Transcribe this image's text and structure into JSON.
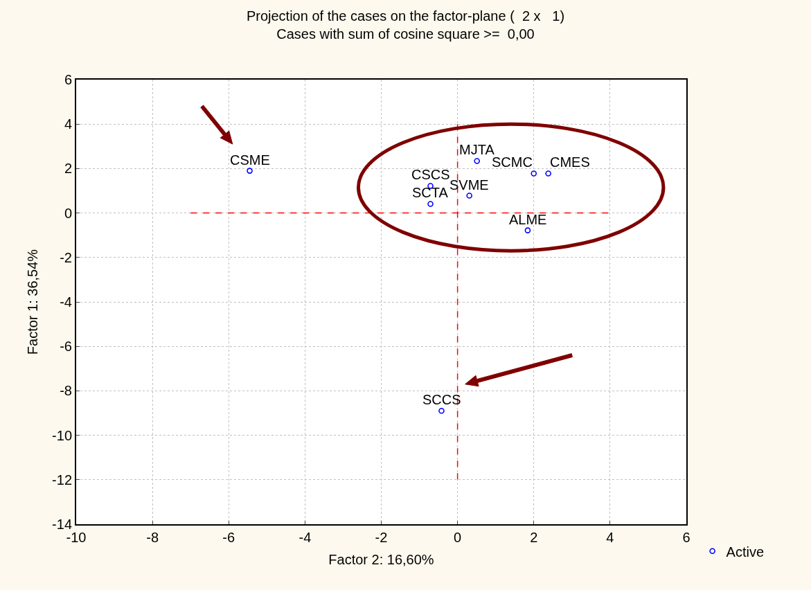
{
  "chart_data": {
    "type": "scatter",
    "title": "Projection of the cases on the factor-plane (  2 x   1)",
    "subtitle": "Cases with sum of cosine square >=  0,00",
    "xlabel": "Factor 2: 16,60%",
    "ylabel": "Factor 1: 36,54%",
    "series": [
      {
        "name": "Active",
        "color": "#0000ff",
        "x": [
          -5.45,
          0.51,
          2.0,
          2.38,
          -0.71,
          -0.71,
          0.31,
          1.84,
          -0.42
        ],
        "values": [
          1.9,
          2.34,
          1.78,
          1.78,
          1.22,
          0.41,
          0.78,
          -0.78,
          -8.9
        ],
        "marker": "circle"
      },
      {
        "type": "line",
        "color": "#ff0000",
        "line_style": "dashed",
        "marker": "none",
        "x": [
          -7,
          4
        ],
        "values": [
          0,
          0
        ]
      },
      {
        "type": "line",
        "color": "#ff0000",
        "line_style": "dashed",
        "marker": "none",
        "x": [
          0,
          0
        ],
        "values": [
          4,
          -12
        ]
      }
    ],
    "annotations": [
      {
        "text": "CSME",
        "x": -5.45,
        "y": 1.9
      },
      {
        "text": "MJTA",
        "x": 0.51,
        "y": 2.34
      },
      {
        "text": "SCMC",
        "x": 2.0,
        "y": 1.78
      },
      {
        "text": "CMES",
        "x": 2.38,
        "y": 1.78
      },
      {
        "text": "CSCS",
        "x": -0.71,
        "y": 1.22
      },
      {
        "text": "SCTA",
        "x": -0.71,
        "y": 0.41
      },
      {
        "text": "SVME",
        "x": 0.31,
        "y": 0.78
      },
      {
        "text": "ALME",
        "x": 1.84,
        "y": -0.78
      },
      {
        "text": "SCCS",
        "x": -0.42,
        "y": -8.9
      }
    ],
    "xlim": [
      -10,
      6
    ],
    "xticks": [
      -10,
      -8,
      -6,
      -4,
      -2,
      0,
      2,
      4,
      6
    ],
    "ylim": [
      -14,
      6
    ],
    "yticks": [
      -14,
      -12,
      -10,
      -8,
      -6,
      -4,
      -2,
      0,
      2,
      4,
      6
    ],
    "grid": true,
    "legend": "bottom right"
  }
}
